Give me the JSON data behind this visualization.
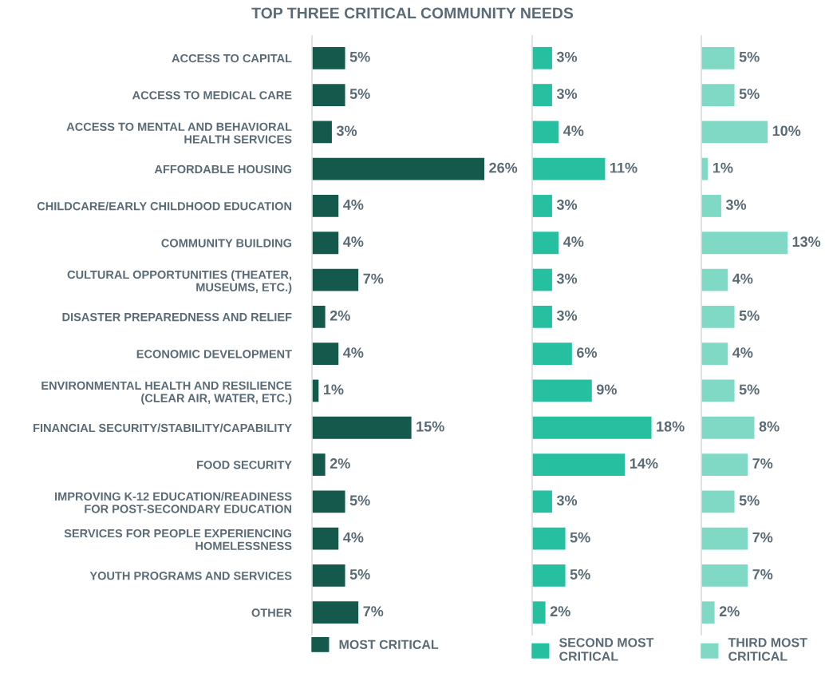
{
  "chart_data": [
    {
      "type": "bar",
      "orientation": "horizontal",
      "title": "TOP THREE CRITICAL COMMUNITY NEEDS",
      "tick_labels": "y",
      "legend": "bottom",
      "grid": false,
      "categories": [
        "ACCESS TO CAPITAL",
        "ACCESS TO MEDICAL CARE",
        "ACCESS TO MENTAL AND BEHAVIORAL\nHEALTH SERVICES",
        "AFFORDABLE HOUSING",
        "CHILDCARE/EARLY CHILDHOOD EDUCATION",
        "COMMUNITY BUILDING",
        "CULTURAL OPPORTUNITIES (THEATER,\nMUSEUMS, ETC.)",
        "DISASTER PREPAREDNESS AND RELIEF",
        "ECONOMIC DEVELOPMENT",
        "ENVIRONMENTAL HEALTH AND RESILIENCE\n(CLEAR AIR, WATER, ETC.)",
        "FINANCIAL SECURITY/STABILITY/CAPABILITY",
        "FOOD SECURITY",
        "IMPROVING K-12 EDUCATION/READINESS\nFOR POST-SECONDARY EDUCATION",
        "SERVICES FOR PEOPLE EXPERIENCING\nHOMELESSNESS",
        "YOUTH PROGRAMS AND SERVICES",
        "OTHER"
      ],
      "series": [
        {
          "name": "MOST CRITICAL",
          "color": "#14594b",
          "values": [
            5,
            5,
            3,
            26,
            4,
            4,
            7,
            2,
            4,
            1,
            15,
            2,
            5,
            4,
            5,
            7
          ],
          "value_labels": [
            "5%",
            "5%",
            "3%",
            "26%",
            "4%",
            "4%",
            "7%",
            "2%",
            "4%",
            "1%",
            "15%",
            "2%",
            "5%",
            "4%",
            "5%",
            "7%"
          ]
        }
      ]
    },
    {
      "type": "bar",
      "orientation": "horizontal",
      "tick_labels": false,
      "legend": "bottom",
      "grid": false,
      "categories": [
        null,
        null,
        null,
        null,
        null,
        null,
        null,
        null,
        null,
        null,
        null,
        null,
        null,
        null,
        null,
        null
      ],
      "series": [
        {
          "name": "SECOND MOST\nCRITICAL",
          "color": "#26bfa0",
          "values": [
            3,
            3,
            4,
            11,
            3,
            4,
            3,
            3,
            6,
            9,
            18,
            14,
            3,
            5,
            5,
            2
          ],
          "value_labels": [
            "3%",
            "3%",
            "4%",
            "11%",
            "3%",
            "4%",
            "3%",
            "3%",
            "6%",
            "9%",
            "18%",
            "14%",
            "3%",
            "5%",
            "5%",
            "2%"
          ]
        }
      ]
    },
    {
      "type": "bar",
      "orientation": "horizontal",
      "tick_labels": false,
      "legend": "bottom",
      "grid": false,
      "categories": [
        null,
        null,
        null,
        null,
        null,
        null,
        null,
        null,
        null,
        null,
        null,
        null,
        null,
        null,
        null,
        null
      ],
      "series": [
        {
          "name": "THIRD MOST\nCRITICAL",
          "color": "#7fd9c5",
          "values": [
            5,
            5,
            10,
            1,
            3,
            13,
            4,
            5,
            4,
            5,
            8,
            7,
            5,
            7,
            7,
            2
          ],
          "value_labels": [
            "5%",
            "5%",
            "10%",
            "1%",
            "3%",
            "13%",
            "4%",
            "5%",
            "4%",
            "5%",
            "8%",
            "7%",
            "5%",
            "7%",
            "7%",
            "2%"
          ]
        }
      ]
    }
  ]
}
